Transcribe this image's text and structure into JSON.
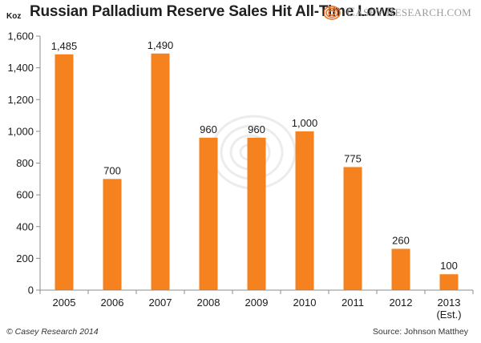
{
  "title": "Russian Palladium Reserve Sales Hit All-Time Lows",
  "brand": {
    "first": "C",
    "rest": "asey ",
    "second": "R",
    "rest2": "esearch.com",
    "logo_icon": "concentric-arc-logo-icon",
    "logo_color": "#e8732a"
  },
  "footer": {
    "copyright": "© Casey Research 2014",
    "source": "Source: Johnson Matthey"
  },
  "chart_data": {
    "type": "bar",
    "title": "Russian Palladium Reserve Sales Hit All-Time Lows",
    "ylabel": "Koz",
    "xlabel": "",
    "categories": [
      "2005",
      "2006",
      "2007",
      "2008",
      "2009",
      "2010",
      "2011",
      "2012",
      "2013\n(Est.)"
    ],
    "values": [
      1485,
      700,
      1490,
      960,
      960,
      1000,
      775,
      260,
      100
    ],
    "data_labels": [
      "1,485",
      "700",
      "1,490",
      "960",
      "960",
      "1,000",
      "775",
      "260",
      "100"
    ],
    "ylim": [
      0,
      1600
    ],
    "yticks": [
      0,
      200,
      400,
      600,
      800,
      1000,
      1200,
      1400,
      1600
    ],
    "ytick_labels": [
      "0",
      "200",
      "400",
      "600",
      "800",
      "1,000",
      "1,200",
      "1,400",
      "1,600"
    ],
    "bar_color": "#f5821f",
    "grid": false,
    "legend": "none"
  }
}
